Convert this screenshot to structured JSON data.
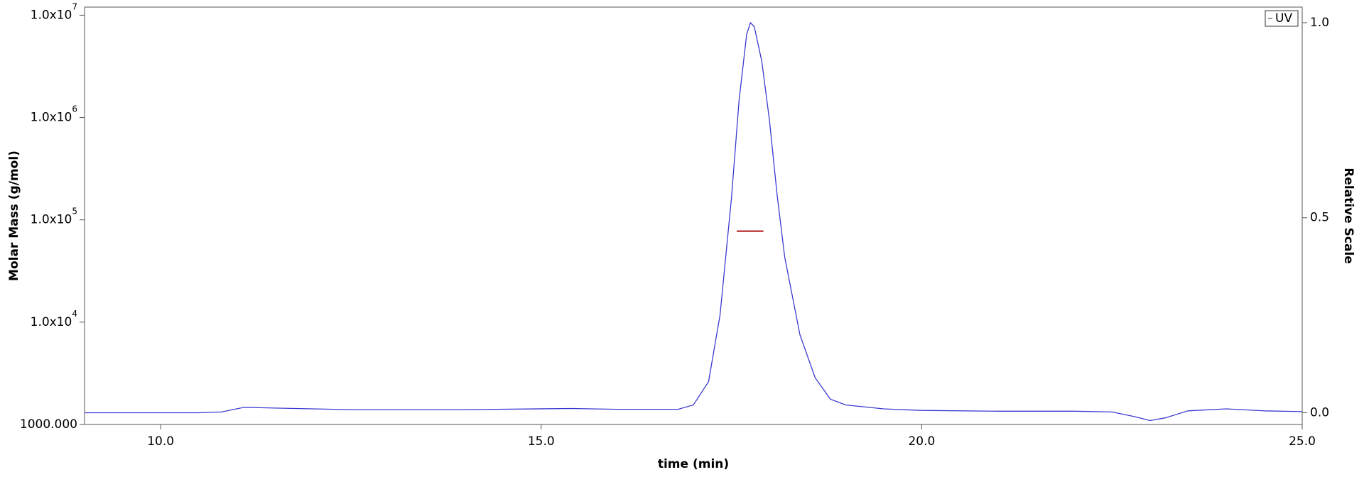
{
  "chart_data": {
    "type": "line",
    "xlabel": "time (min)",
    "ylabel": "Molar Mass (g/mol)",
    "y2label": "Relative Scale",
    "xlim": [
      9,
      25
    ],
    "xticks": [
      {
        "value": 10,
        "label": "10.0"
      },
      {
        "value": 15,
        "label": "15.0"
      },
      {
        "value": 20,
        "label": "20.0"
      },
      {
        "value": 25,
        "label": "25.0"
      }
    ],
    "ylim": [
      1000,
      12000000
    ],
    "ylog": true,
    "yticks": [
      {
        "value": 1000,
        "label": "1000.000"
      },
      {
        "value": 10000,
        "label": "1.0x10",
        "superscript": "4"
      },
      {
        "value": 100000,
        "label": "1.0x10",
        "superscript": "5"
      },
      {
        "value": 1000000,
        "label": "1.0x10",
        "superscript": "6"
      },
      {
        "value": 10000000,
        "label": "1.0x10",
        "superscript": "7"
      }
    ],
    "y2lim": [
      -0.03,
      1.04
    ],
    "y2ticks": [
      {
        "value": 0,
        "label": "0.0"
      },
      {
        "value": 0.5,
        "label": "0.5"
      },
      {
        "value": 1,
        "label": "1.0"
      }
    ],
    "grid": false,
    "legend": "upper right",
    "series": [
      {
        "name": "UV",
        "color": "#3a3ad2",
        "axis": "y2",
        "x": [
          9.0,
          10.5,
          10.8,
          11.1,
          11.5,
          12.5,
          14.0,
          15.4,
          16.0,
          16.8,
          17.0,
          17.2,
          17.35,
          17.5,
          17.6,
          17.7,
          17.75,
          17.8,
          17.9,
          18.0,
          18.1,
          18.2,
          18.4,
          18.6,
          18.8,
          19.0,
          19.5,
          20.0,
          21.0,
          22.0,
          22.5,
          22.8,
          23.0,
          23.2,
          23.5,
          24.0,
          24.5,
          25.0
        ],
        "values": [
          0.0,
          0.0,
          0.002,
          0.014,
          0.012,
          0.008,
          0.008,
          0.011,
          0.009,
          0.009,
          0.02,
          0.08,
          0.25,
          0.55,
          0.8,
          0.97,
          1.0,
          0.99,
          0.9,
          0.75,
          0.56,
          0.4,
          0.2,
          0.09,
          0.035,
          0.02,
          0.01,
          0.006,
          0.004,
          0.004,
          0.002,
          -0.01,
          -0.02,
          -0.013,
          0.005,
          0.01,
          0.005,
          0.003
        ]
      },
      {
        "color": "#b01010",
        "axis": "y",
        "x": [
          17.57,
          17.92
        ],
        "values": [
          77600,
          77600
        ]
      }
    ]
  }
}
